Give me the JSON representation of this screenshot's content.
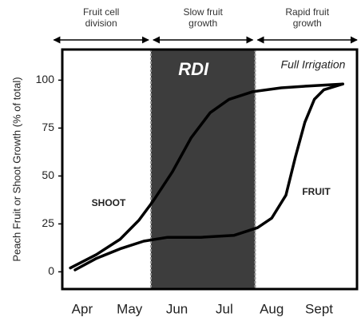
{
  "chart_data": {
    "type": "line",
    "y_label": "Peach Fruit or Shoot Growth (% of total)",
    "xlim": [
      -0.42,
      5.8
    ],
    "ylim": [
      -9,
      116
    ],
    "xticks": [
      {
        "value": 0,
        "label": "Apr"
      },
      {
        "value": 1,
        "label": "May"
      },
      {
        "value": 2,
        "label": "Jun"
      },
      {
        "value": 3,
        "label": "Jul"
      },
      {
        "value": 4,
        "label": "Aug"
      },
      {
        "value": 5,
        "label": "Sept"
      }
    ],
    "yticks": [
      0,
      25,
      50,
      75,
      100
    ],
    "regions": [
      {
        "label": "RDI",
        "x": [
          1.45,
          3.65
        ],
        "color": "#3d3d3d"
      }
    ],
    "annotations": [
      "Full Irrigation"
    ],
    "phases": [
      {
        "label": "Fruit cell division",
        "x": [
          -0.6,
          1.4
        ]
      },
      {
        "label": "Slow fruit growth",
        "x": [
          1.5,
          3.6
        ]
      },
      {
        "label": "Rapid fruit growth",
        "x": [
          3.7,
          5.8
        ]
      }
    ],
    "series": [
      {
        "name": "SHOOT",
        "color": "#000000",
        "x": [
          -0.25,
          0.3,
          0.8,
          1.2,
          1.5,
          1.9,
          2.3,
          2.7,
          3.1,
          3.6,
          4.2,
          4.8,
          5.5
        ],
        "values": [
          2,
          9,
          17,
          27,
          37,
          52,
          70,
          83,
          90,
          94,
          96,
          97,
          98
        ]
      },
      {
        "name": "FRUIT",
        "color": "#000000",
        "x": [
          -0.15,
          0.3,
          0.8,
          1.3,
          1.8,
          2.5,
          3.2,
          3.7,
          4.0,
          4.3,
          4.5,
          4.7,
          4.9,
          5.1,
          5.5
        ],
        "values": [
          1,
          7,
          12,
          16,
          18,
          18,
          19,
          23,
          28,
          40,
          60,
          78,
          90,
          95,
          98
        ]
      }
    ]
  }
}
